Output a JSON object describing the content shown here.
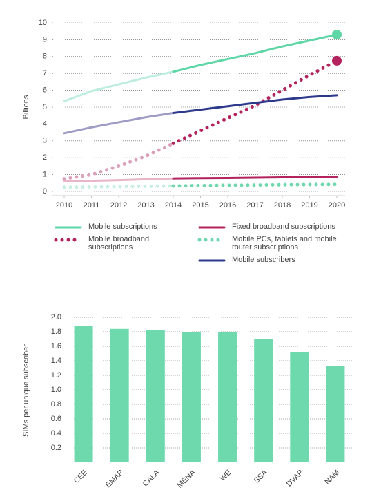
{
  "chart_data": [
    {
      "type": "line",
      "y_label": "Billions",
      "x": [
        2010,
        2011,
        2012,
        2013,
        2014,
        2015,
        2016,
        2017,
        2018,
        2019,
        2020
      ],
      "xlim": [
        2010,
        2020
      ],
      "xticks": [
        2010,
        2011,
        2012,
        2013,
        2014,
        2015,
        2016,
        2017,
        2018,
        2019,
        2020
      ],
      "ylim": [
        0,
        10
      ],
      "yticks": [
        0,
        1,
        2,
        3,
        4,
        5,
        6,
        7,
        8,
        9,
        10
      ],
      "grid": true,
      "forecast_start": 2014,
      "series": [
        {
          "name": "Mobile subscriptions",
          "color": "#5fd6a5",
          "light_color": "#bdeedb",
          "style": "solid",
          "end_marker": true,
          "values": [
            5.35,
            5.95,
            6.35,
            6.75,
            7.1,
            7.5,
            7.85,
            8.2,
            8.6,
            8.95,
            9.3
          ]
        },
        {
          "name": "Fixed broadband subscriptions",
          "color": "#b3245e",
          "light_color": "#e8b4c8",
          "style": "solid",
          "end_marker": false,
          "values": [
            0.6,
            0.63,
            0.67,
            0.72,
            0.77,
            0.79,
            0.8,
            0.82,
            0.84,
            0.86,
            0.88
          ]
        },
        {
          "name": "Mobile broadband subscriptions",
          "color": "#b3245e",
          "light_color": "#dba0b9",
          "style": "dotted",
          "end_marker": true,
          "values": [
            0.75,
            1.0,
            1.5,
            2.1,
            2.85,
            3.6,
            4.35,
            5.1,
            6.0,
            6.9,
            7.75
          ]
        },
        {
          "name": "Mobile PCs, tablets and mobile router  subscriptions",
          "color": "#6ed7ad",
          "light_color": "#c6efdf",
          "style": "dotted",
          "end_marker": false,
          "values": [
            0.25,
            0.27,
            0.29,
            0.31,
            0.33,
            0.35,
            0.37,
            0.38,
            0.4,
            0.41,
            0.42
          ]
        },
        {
          "name": "Mobile subscribers",
          "color": "#2d3a8c",
          "light_color": "#9d9cc4",
          "style": "solid",
          "end_marker": false,
          "values": [
            3.45,
            3.8,
            4.1,
            4.4,
            4.65,
            4.85,
            5.05,
            5.25,
            5.45,
            5.6,
            5.7
          ]
        }
      ]
    },
    {
      "type": "bar",
      "y_label": "SIMs per unique subscriber",
      "color": "#6dd9ad",
      "categories": [
        "CEE",
        "EMAP",
        "CALA",
        "MENA",
        "WE",
        "SSA",
        "DVAP",
        "NAM"
      ],
      "values": [
        1.88,
        1.84,
        1.82,
        1.8,
        1.8,
        1.7,
        1.52,
        1.33
      ],
      "ylim": [
        0,
        2
      ],
      "yticks": [
        0.2,
        0.4,
        0.6,
        0.8,
        {
          "value": 1,
          "label": "1.0"
        },
        1.2,
        1.4,
        1.6,
        1.8,
        {
          "value": 2,
          "label": "2.0"
        }
      ],
      "grid": true
    }
  ]
}
